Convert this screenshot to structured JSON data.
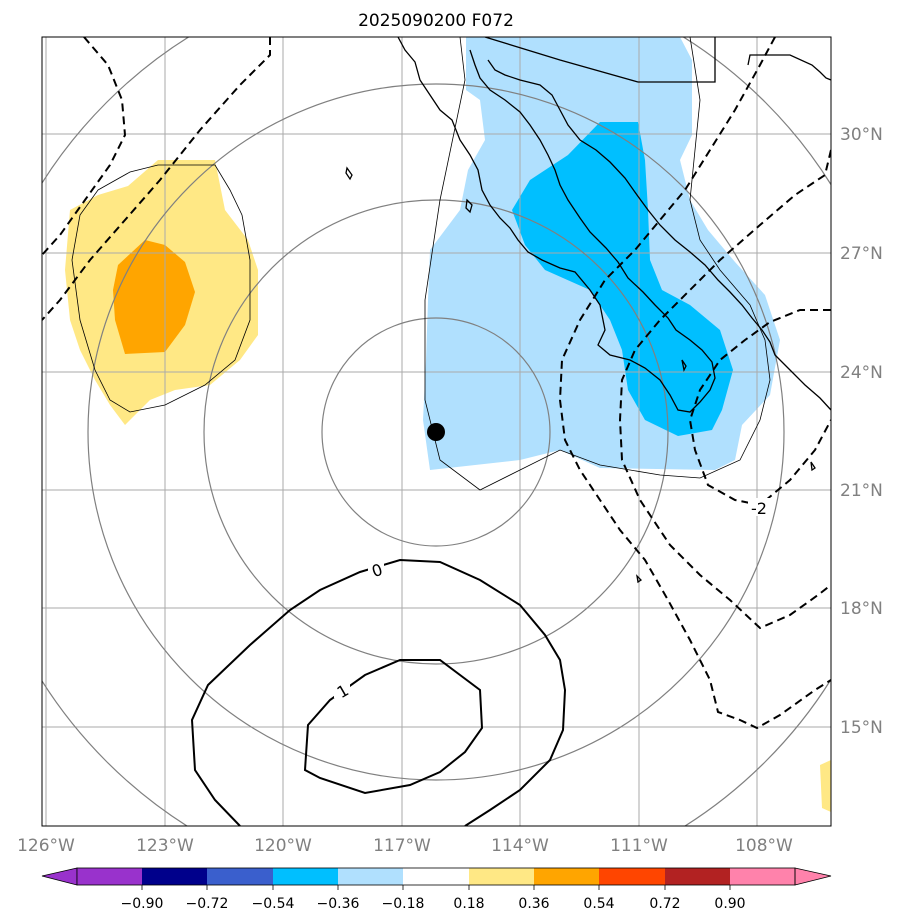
{
  "title": "2025090200 F072",
  "map": {
    "lat_labels": [
      "30°N",
      "27°N",
      "24°N",
      "21°N",
      "18°N",
      "15°N"
    ],
    "lon_labels": [
      "126°W",
      "123°W",
      "120°W",
      "117°W",
      "114°W",
      "111°W",
      "108°W"
    ],
    "contour_labels": [
      "0",
      "1",
      "-2"
    ],
    "storm_marker": {
      "lat": 22.5,
      "lon": -116.2
    }
  },
  "colorbar": {
    "ticks": [
      "−0.90",
      "−0.72",
      "−0.54",
      "−0.36",
      "−0.18",
      "0.18",
      "0.36",
      "0.54",
      "0.72",
      "0.90"
    ],
    "colors": [
      "#9932cc",
      "#00008b",
      "#3a5fcd",
      "#00bfff",
      "#b0e0fe",
      "#ffffff",
      "#ffe885",
      "#ffa500",
      "#ff4500",
      "#b22222",
      "#ff82ab"
    ]
  },
  "colors": {
    "light_blue": "#b0e0fe",
    "deep_sky_blue": "#00bfff",
    "light_yellow": "#ffe885",
    "orange": "#ffa500",
    "grid": "#aaaaaa",
    "range_rings": "#808080"
  }
}
